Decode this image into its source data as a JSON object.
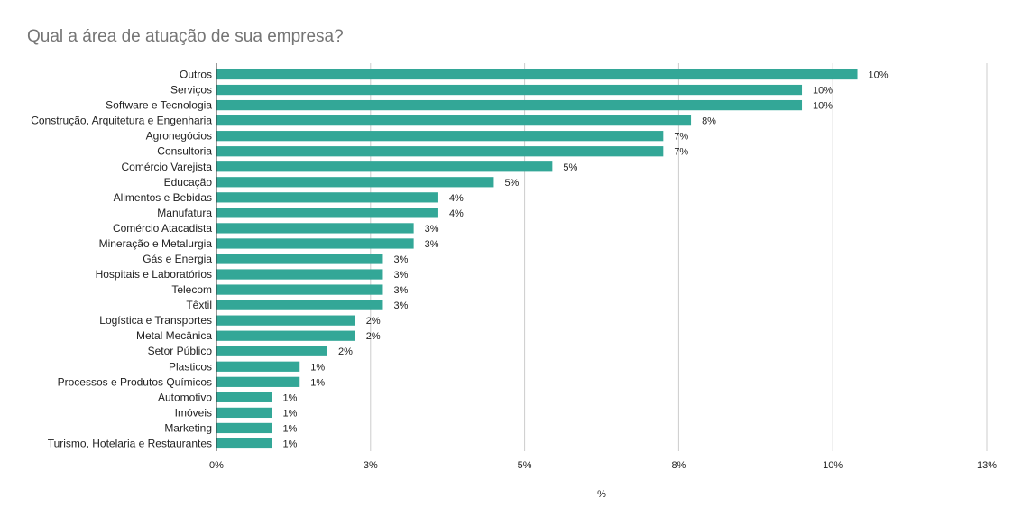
{
  "chart_data": {
    "type": "bar",
    "orientation": "horizontal",
    "title": "Qual a área de atuação de sua empresa?",
    "xlabel": "%",
    "ylabel": "",
    "xlim": [
      0,
      12.5
    ],
    "grid": true,
    "bar_color": "#33a797",
    "categories": [
      "Outros",
      "Serviços",
      "Software e Tecnologia",
      "Construção, Arquitetura e Engenharia",
      "Agronegócios",
      "Consultoria",
      "Comércio Varejista",
      "Educação",
      "Alimentos e Bebidas",
      "Manufatura",
      "Comércio Atacadista",
      "Mineração e Metalurgia",
      "Gás e Energia",
      "Hospitais e Laboratórios",
      "Telecom",
      "Têxtil",
      "Logística e Transportes",
      "Metal Mecânica",
      "Setor Público",
      "Plasticos",
      "Processos e Produtos Químicos",
      "Automotivo",
      "Imóveis",
      "Marketing",
      "Turismo, Hotelaria e Restaurantes"
    ],
    "values": [
      10.4,
      9.5,
      9.5,
      7.7,
      7.25,
      7.25,
      5.45,
      4.5,
      3.6,
      3.6,
      3.2,
      3.2,
      2.7,
      2.7,
      2.7,
      2.7,
      2.25,
      2.25,
      1.8,
      1.35,
      1.35,
      0.9,
      0.9,
      0.9,
      0.9
    ],
    "value_labels": [
      "10%",
      "10%",
      "10%",
      "8%",
      "7%",
      "7%",
      "5%",
      "5%",
      "4%",
      "4%",
      "3%",
      "3%",
      "3%",
      "3%",
      "3%",
      "3%",
      "2%",
      "2%",
      "2%",
      "1%",
      "1%",
      "1%",
      "1%",
      "1%",
      "1%"
    ],
    "x_ticks": [
      {
        "value": 0,
        "label": "0%"
      },
      {
        "value": 2.5,
        "label": "3%"
      },
      {
        "value": 5,
        "label": "5%"
      },
      {
        "value": 7.5,
        "label": "8%"
      },
      {
        "value": 10,
        "label": "10%"
      },
      {
        "value": 12.5,
        "label": "13%"
      }
    ]
  }
}
